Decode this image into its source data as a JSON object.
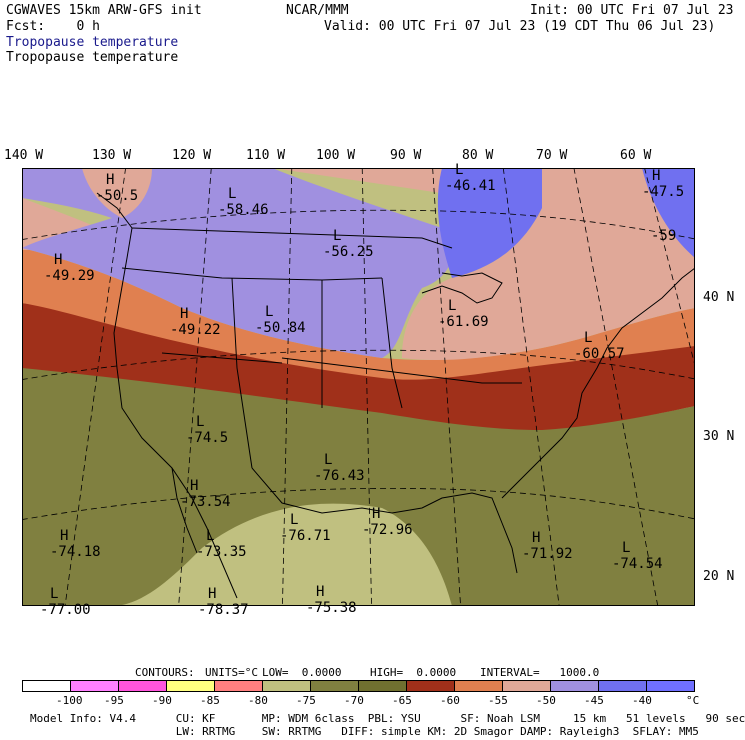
{
  "header": {
    "model": "CGWAVES 15km ARW-GFS init",
    "org": "NCAR/MMM",
    "init": "Init: 00 UTC Fri 07 Jul 23",
    "fcst": "Fcst:    0 h",
    "valid": "Valid: 00 UTC Fri 07 Jul 23 (19 CDT Thu 06 Jul 23)",
    "field_title_blue": "Tropopause temperature",
    "field_title": "Tropopause temperature"
  },
  "lon_labels": [
    "140 W",
    "130 W",
    "120 W",
    "110 W",
    "100 W",
    "90 W",
    "80 W",
    "70 W",
    "60 W"
  ],
  "lat_labels": [
    "40 N",
    "30 N",
    "20 N"
  ],
  "map_labels": [
    {
      "mark": "H",
      "value": "-50.5"
    },
    {
      "mark": "L",
      "value": "-58.46"
    },
    {
      "mark": "L",
      "value": "-56.25"
    },
    {
      "mark": "L",
      "value": "-46.41"
    },
    {
      "mark": "H",
      "value": "-47.5"
    },
    {
      "mark": "",
      "value": "-59"
    },
    {
      "mark": "H",
      "value": "-49.29"
    },
    {
      "mark": "H",
      "value": "-49.22"
    },
    {
      "mark": "L",
      "value": "-50.84"
    },
    {
      "mark": "L",
      "value": "-61.69"
    },
    {
      "mark": "L",
      "value": "-60.57"
    },
    {
      "mark": "L",
      "value": "-74.5"
    },
    {
      "mark": "L",
      "value": "-76.43"
    },
    {
      "mark": "H",
      "value": "-73.54"
    },
    {
      "mark": "H",
      "value": "-72.96"
    },
    {
      "mark": "H",
      "value": "-74.18"
    },
    {
      "mark": "L",
      "value": "-73.35"
    },
    {
      "mark": "L",
      "value": "-76.71"
    },
    {
      "mark": "H",
      "value": "-71.92"
    },
    {
      "mark": "L",
      "value": "-74.54"
    },
    {
      "mark": "L",
      "value": "-77.00"
    },
    {
      "mark": "H",
      "value": "-78.37"
    },
    {
      "mark": "H",
      "value": "-75.38"
    }
  ],
  "contours": {
    "label": "CONTOURS:",
    "units": "UNITS=°C",
    "low": "LOW=  0.0000",
    "high": "HIGH=  0.0000",
    "interval": "INTERVAL=   1000.0"
  },
  "colorbar": {
    "colors": [
      "#ffffff",
      "#ff80ff",
      "#ff55dd",
      "#ffff80",
      "#ff8080",
      "#c0c080",
      "#808040",
      "#707030",
      "#a0301a",
      "#e08050",
      "#e0a898",
      "#a090e0",
      "#7070f0",
      "#7070ff"
    ],
    "labels": [
      "-100",
      "-95",
      "-90",
      "-85",
      "-80",
      "-75",
      "-70",
      "-65",
      "-60",
      "-55",
      "-50",
      "-45",
      "-40",
      "°C"
    ]
  },
  "footer": {
    "line1": "Model Info: V4.4      CU: KF       MP: WDM 6class  PBL: YSU      SF: Noah LSM     15 km   51 levels   90 sec",
    "line2": "                      LW: RRTMG    SW: RRTMG   DIFF: simple KM: 2D Smagor DAMP: Rayleigh3  SFLAY: MM5"
  }
}
